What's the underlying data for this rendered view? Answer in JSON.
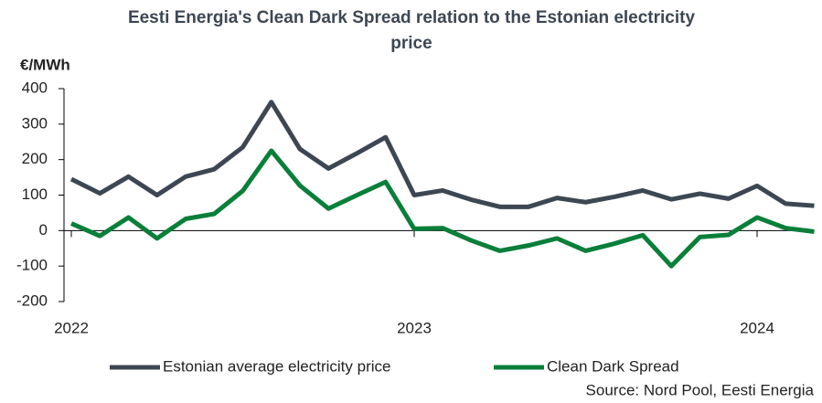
{
  "chart_data": {
    "type": "line",
    "title": "Eesti Energia's Clean Dark Spread relation to the Estonian electricity price",
    "y_label": "€/MWh",
    "source": "Source: Nord Pool, Eesti Energia",
    "categories": [
      "2022",
      null,
      null,
      null,
      null,
      null,
      null,
      null,
      null,
      null,
      null,
      null,
      "2023",
      null,
      null,
      null,
      null,
      null,
      null,
      null,
      null,
      null,
      null,
      null,
      "2024",
      null,
      null
    ],
    "series": [
      {
        "name": "Estonian average electricity price",
        "color": "#3d4753",
        "values": [
          145,
          105,
          152,
          100,
          152,
          173,
          235,
          362,
          230,
          175,
          218,
          263,
          100,
          113,
          87,
          67,
          67,
          92,
          80,
          95,
          113,
          88,
          104,
          90,
          126,
          76,
          70
        ]
      },
      {
        "name": "Clean Dark Spread",
        "color": "#0a7f3a",
        "values": [
          20,
          -15,
          37,
          -22,
          33,
          47,
          112,
          225,
          127,
          62,
          100,
          137,
          5,
          7,
          -28,
          -57,
          -42,
          -22,
          -57,
          -37,
          -13,
          -100,
          -18,
          -12,
          37,
          7,
          -3
        ]
      }
    ],
    "ylim": [
      -200,
      400
    ],
    "yticks": [
      -200,
      -100,
      0,
      100,
      200,
      300,
      400
    ],
    "legend": "bottom"
  }
}
